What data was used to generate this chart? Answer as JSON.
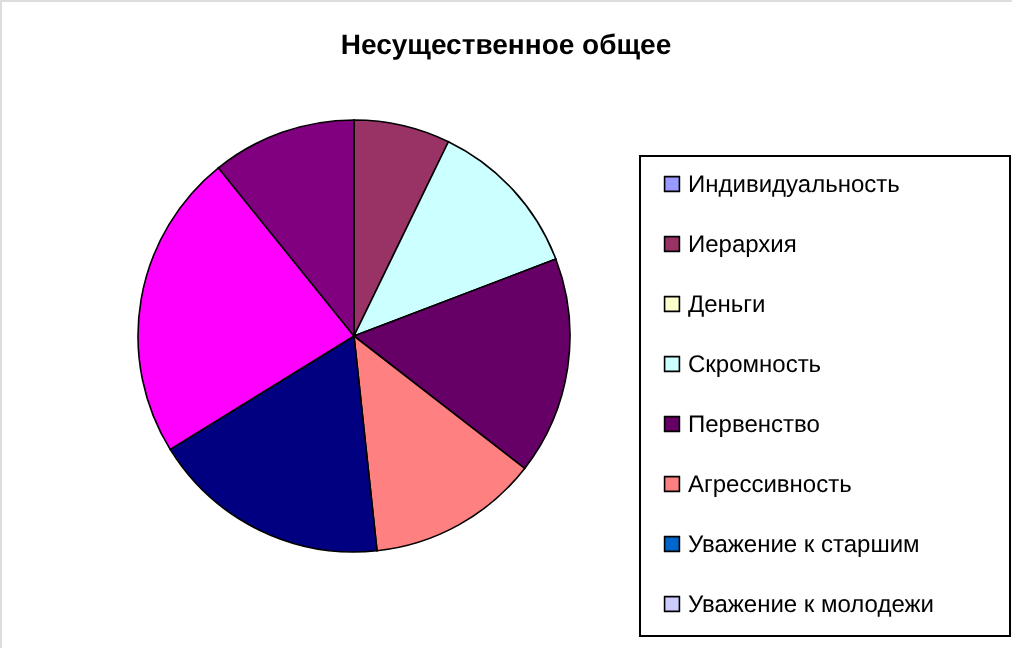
{
  "chart_data": {
    "type": "pie",
    "title": "Несущественное общее",
    "categories": [
      "Индивидуальность",
      "Иерархия",
      "Деньги",
      "Скромность",
      "Первенство",
      "Агрессивность",
      "Уважение к старшим",
      "Уважение к молодежи",
      null,
      null,
      null
    ],
    "values": [
      0,
      7.2,
      0,
      12,
      16.3,
      12.8,
      0,
      0,
      17.9,
      23,
      10.8
    ],
    "colors": [
      "#9999ff",
      "#993366",
      "#ffffcc",
      "#ccffff",
      "#660066",
      "#ff8080",
      "#0066cc",
      "#ccccff",
      "#000080",
      "#ff00ff",
      "#800080"
    ],
    "legend": "right"
  }
}
